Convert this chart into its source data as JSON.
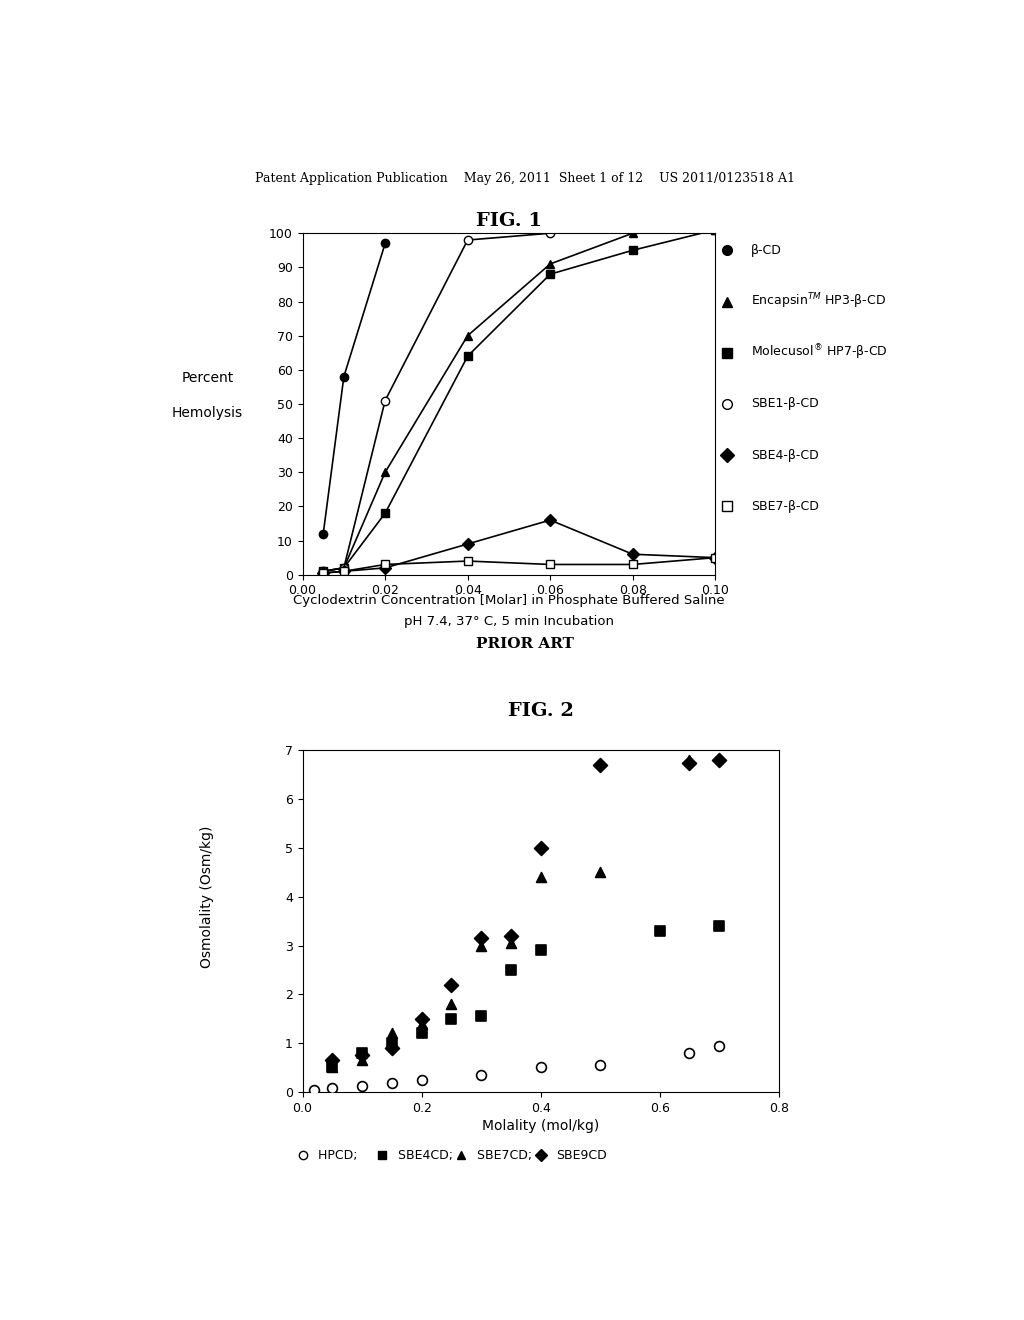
{
  "fig1": {
    "title": "FIG. 1",
    "xlabel_line1": "Cyclodextrin Concentration [Molar] in Phosphate Buffered Saline",
    "xlabel_line2": "pH 7.4, 37° C, 5 min Incubation",
    "ylabel_line1": "Percent",
    "ylabel_line2": "Hemolysis",
    "xlim": [
      0,
      0.1
    ],
    "ylim": [
      0,
      100
    ],
    "xticks": [
      0,
      0.02,
      0.04,
      0.06,
      0.08,
      0.1
    ],
    "yticks": [
      0,
      10,
      20,
      30,
      40,
      50,
      60,
      70,
      80,
      90,
      100
    ],
    "series": {
      "beta_CD": {
        "x": [
          0.005,
          0.01,
          0.02
        ],
        "y": [
          12,
          58,
          97
        ],
        "marker": "o",
        "fillstyle": "full",
        "color": "black",
        "label": "β-CD",
        "linestyle": "-"
      },
      "encapsin": {
        "x": [
          0.005,
          0.01,
          0.02,
          0.04,
          0.06,
          0.08,
          0.1
        ],
        "y": [
          1,
          2,
          30,
          70,
          91,
          100,
          101
        ],
        "marker": "^",
        "fillstyle": "full",
        "color": "black",
        "label": "EncapsinTM HP3-β-CD",
        "linestyle": "-"
      },
      "molecusol": {
        "x": [
          0.005,
          0.01,
          0.02,
          0.04,
          0.06,
          0.08,
          0.1
        ],
        "y": [
          1,
          2,
          18,
          64,
          88,
          95,
          101
        ],
        "marker": "s",
        "fillstyle": "full",
        "color": "black",
        "label": "Molecusol® HP7-β-CD",
        "linestyle": "-"
      },
      "SBE1": {
        "x": [
          0.005,
          0.01,
          0.02,
          0.04,
          0.06,
          0.08,
          0.1
        ],
        "y": [
          1,
          2,
          51,
          98,
          100,
          101,
          102
        ],
        "marker": "o",
        "fillstyle": "none",
        "color": "black",
        "label": "SBE1-β-CD",
        "linestyle": "-"
      },
      "SBE4": {
        "x": [
          0.005,
          0.01,
          0.02,
          0.04,
          0.06,
          0.08,
          0.1
        ],
        "y": [
          0.5,
          1,
          2,
          9,
          16,
          6,
          5
        ],
        "marker": "D",
        "fillstyle": "full",
        "color": "black",
        "label": "SBE4-β-CD",
        "linestyle": "-"
      },
      "SBE7": {
        "x": [
          0.005,
          0.01,
          0.02,
          0.04,
          0.06,
          0.08,
          0.1
        ],
        "y": [
          0.5,
          1,
          3,
          4,
          3,
          3,
          5
        ],
        "marker": "s",
        "fillstyle": "none",
        "color": "black",
        "label": "SBE7-β-CD",
        "linestyle": "-"
      }
    }
  },
  "fig2": {
    "title": "FIG. 2",
    "prior_art": "PRIOR ART",
    "xlabel": "Molality (mol/kg)",
    "ylabel": "Osmolality (Osm/kg)",
    "xlim": [
      0,
      0.8
    ],
    "ylim": [
      0,
      7
    ],
    "xticks": [
      0,
      0.2,
      0.4,
      0.6,
      0.8
    ],
    "yticks": [
      0,
      1,
      2,
      3,
      4,
      5,
      6,
      7
    ],
    "caption": "o-HPCD; ■-SBE4CD; ▲-SBE7CD; -SBE9CD",
    "series": {
      "HPCD": {
        "x": [
          0.02,
          0.05,
          0.1,
          0.15,
          0.2,
          0.3,
          0.4,
          0.5,
          0.65,
          0.7
        ],
        "y": [
          0.04,
          0.08,
          0.13,
          0.18,
          0.25,
          0.35,
          0.5,
          0.55,
          0.8,
          0.95
        ],
        "marker": "o",
        "fillstyle": "none",
        "color": "black",
        "label": "HPCD"
      },
      "SBE4CD": {
        "x": [
          0.05,
          0.1,
          0.15,
          0.2,
          0.25,
          0.3,
          0.35,
          0.4,
          0.6,
          0.7
        ],
        "y": [
          0.5,
          0.8,
          1.0,
          1.2,
          1.5,
          1.55,
          2.5,
          2.9,
          3.3,
          3.4
        ],
        "marker": "s",
        "fillstyle": "full",
        "color": "black",
        "label": "SBE4CD"
      },
      "SBE7CD": {
        "x": [
          0.05,
          0.1,
          0.15,
          0.2,
          0.25,
          0.3,
          0.35,
          0.4,
          0.5,
          0.65
        ],
        "y": [
          0.5,
          0.65,
          1.2,
          1.4,
          1.8,
          3.0,
          3.05,
          4.4,
          4.5,
          6.8
        ],
        "marker": "^",
        "fillstyle": "full",
        "color": "black",
        "label": "SBE7CD"
      },
      "SBE9CD": {
        "x": [
          0.05,
          0.1,
          0.15,
          0.2,
          0.25,
          0.3,
          0.35,
          0.4,
          0.5,
          0.65,
          0.7
        ],
        "y": [
          0.65,
          0.75,
          0.9,
          1.5,
          2.2,
          3.15,
          3.2,
          5.0,
          6.7,
          6.75,
          6.8
        ],
        "marker": "D",
        "fillstyle": "full",
        "color": "black",
        "label": "SBE9CD"
      }
    }
  },
  "header_text": "Patent Application Publication    May 26, 2011  Sheet 1 of 12    US 2011/0123518 A1",
  "background_color": "#ffffff"
}
